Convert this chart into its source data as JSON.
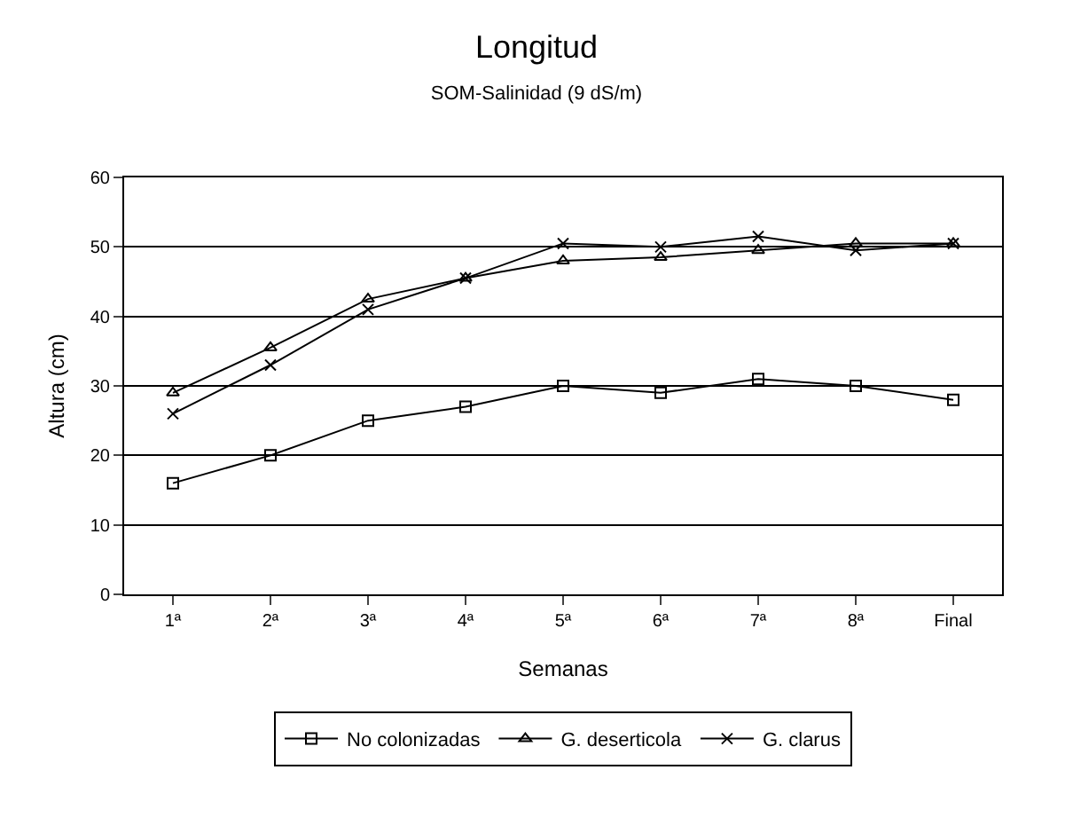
{
  "chart_data": {
    "type": "line",
    "title": "Longitud",
    "subtitle": "SOM-Salinidad (9 dS/m)",
    "xlabel": "Semanas",
    "ylabel": "Altura (cm)",
    "categories": [
      "1ª",
      "2ª",
      "3ª",
      "4ª",
      "5ª",
      "6ª",
      "7ª",
      "8ª",
      "Final"
    ],
    "series": [
      {
        "name": "No colonizadas",
        "color": "#000000",
        "marker": "square",
        "values": [
          16,
          20,
          25,
          27,
          30,
          29,
          31,
          30,
          28
        ]
      },
      {
        "name": "G. deserticola",
        "color": "#000000",
        "marker": "triangle",
        "values": [
          29,
          35.5,
          42.5,
          45.5,
          48,
          48.5,
          49.5,
          50.5,
          50.5
        ]
      },
      {
        "name": "G. clarus",
        "color": "#000000",
        "marker": "cross",
        "values": [
          26,
          33,
          41,
          45.5,
          50.5,
          50,
          51.5,
          49.5,
          50.5
        ]
      }
    ],
    "ylim": [
      0,
      60
    ],
    "yticks": [
      0,
      10,
      20,
      30,
      40,
      50,
      60
    ],
    "grid": "y",
    "legend": "bottom",
    "line_style": "solid"
  }
}
